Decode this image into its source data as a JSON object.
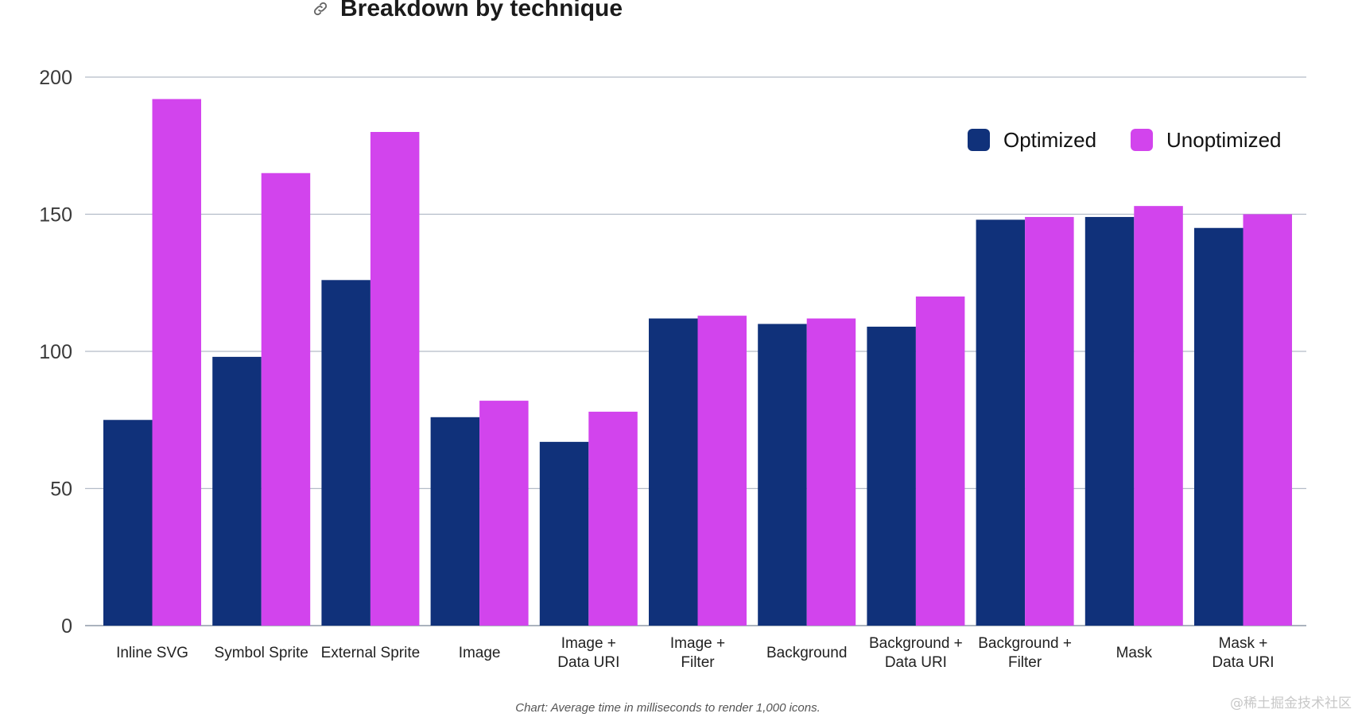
{
  "chart_data": {
    "type": "bar",
    "title": "Breakdown by technique",
    "caption": "Chart: Average time in milliseconds to render 1,000 icons.",
    "categories": [
      "Inline SVG",
      "Symbol Sprite",
      "External Sprite",
      "Image",
      "Image +\nData URI",
      "Image +\nFilter",
      "Background",
      "Background +\nData URI",
      "Background +\nFilter",
      "Mask",
      "Mask +\nData URI"
    ],
    "series": [
      {
        "name": "Optimized",
        "color": "#10317a",
        "values": [
          75,
          98,
          126,
          76,
          67,
          112,
          110,
          109,
          148,
          149,
          145
        ]
      },
      {
        "name": "Unoptimized",
        "color": "#d244ed",
        "values": [
          192,
          165,
          180,
          82,
          78,
          113,
          112,
          120,
          149,
          153,
          150
        ]
      }
    ],
    "ylim": [
      0,
      200
    ],
    "yticks": [
      0,
      50,
      100,
      150,
      200
    ],
    "grid": true,
    "legend_position": "top-right"
  },
  "title_icon": "link-icon",
  "watermark": "@稀土掘金技术社区"
}
